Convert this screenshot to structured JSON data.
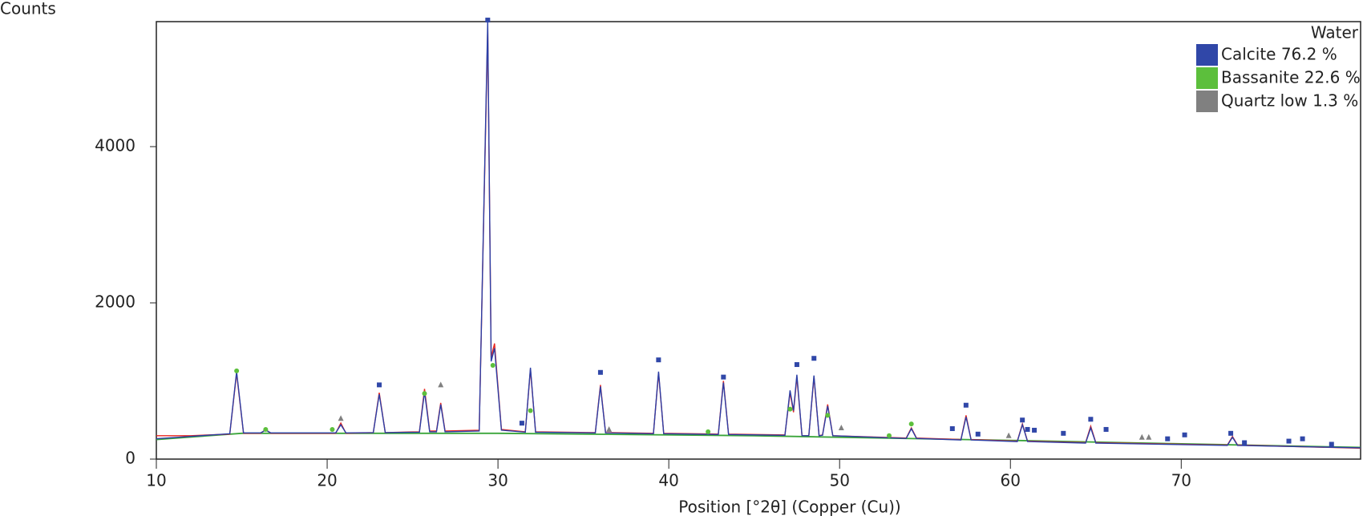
{
  "chart_data": {
    "type": "line",
    "y_label": "Counts",
    "x_label": "Position [°2θ] (Copper (Cu))",
    "legend_title": "Water",
    "xlim": [
      10,
      80.5
    ],
    "ylim": [
      0,
      5600
    ],
    "xticks": [
      10,
      20,
      30,
      40,
      50,
      60,
      70
    ],
    "yticks": [
      0,
      2000,
      4000
    ],
    "grid": false,
    "x": [
      10,
      12,
      14.3,
      14.7,
      15.1,
      16.1,
      16.4,
      16.7,
      20.5,
      20.8,
      21.1,
      22.7,
      23.05,
      23.4,
      25.4,
      25.7,
      26.0,
      26.4,
      26.65,
      26.9,
      28.9,
      29.4,
      29.6,
      29.8,
      30.2,
      31.6,
      31.9,
      32.2,
      35.7,
      36.0,
      36.3,
      39.1,
      39.4,
      39.7,
      42.9,
      43.2,
      43.5,
      46.8,
      47.1,
      47.3,
      47.5,
      47.8,
      48.2,
      48.5,
      48.8,
      49.0,
      49.3,
      49.6,
      53.9,
      54.2,
      54.5,
      57.1,
      57.4,
      57.7,
      60.4,
      60.7,
      61.0,
      64.4,
      64.7,
      65.0,
      72.7,
      73.0,
      73.3,
      80.5
    ],
    "series": [
      {
        "color": "#e8261f",
        "values": [
          300,
          300,
          320,
          1100,
          330,
          330,
          380,
          330,
          330,
          460,
          330,
          340,
          850,
          340,
          350,
          900,
          360,
          360,
          720,
          360,
          370,
          5500,
          1300,
          1480,
          380,
          350,
          1150,
          350,
          340,
          950,
          340,
          330,
          1100,
          330,
          320,
          1000,
          320,
          310,
          850,
          600,
          1050,
          300,
          300,
          1050,
          300,
          310,
          700,
          300,
          270,
          400,
          270,
          250,
          560,
          250,
          230,
          450,
          230,
          210,
          420,
          210,
          180,
          290,
          180,
          140
        ]
      },
      {
        "color": "#2b3fa6",
        "values": [
          260,
          290,
          325,
          1120,
          335,
          335,
          370,
          335,
          335,
          440,
          335,
          340,
          830,
          340,
          345,
          860,
          350,
          350,
          700,
          350,
          360,
          5600,
          1250,
          1420,
          370,
          345,
          1170,
          345,
          335,
          930,
          335,
          325,
          1120,
          325,
          315,
          980,
          315,
          305,
          880,
          620,
          1080,
          300,
          300,
          1070,
          300,
          305,
          680,
          300,
          265,
          390,
          265,
          245,
          540,
          245,
          225,
          440,
          225,
          205,
          400,
          205,
          175,
          280,
          175,
          145
        ]
      }
    ],
    "background": {
      "color": "#3aa53a",
      "x": [
        10,
        15,
        30,
        45,
        60,
        80.5
      ],
      "values": [
        250,
        330,
        330,
        300,
        240,
        150
      ]
    },
    "phases": [
      {
        "name": "Calcite 76.2 %",
        "color": "#3047a8",
        "marker": "square",
        "x": [
          23.05,
          29.4,
          31.4,
          36.0,
          39.4,
          43.2,
          47.5,
          48.5,
          56.6,
          57.4,
          58.1,
          60.7,
          61.0,
          61.4,
          63.1,
          64.7,
          65.6,
          69.2,
          70.2,
          72.9,
          73.7,
          76.3,
          77.1,
          78.8
        ],
        "values": [
          950,
          5620,
          460,
          1110,
          1270,
          1050,
          1210,
          1290,
          390,
          690,
          320,
          500,
          380,
          370,
          330,
          510,
          380,
          260,
          310,
          330,
          210,
          230,
          260,
          190
        ]
      },
      {
        "name": "Bassanite 22.6 %",
        "color": "#5cbf3c",
        "marker": "circle",
        "x": [
          14.7,
          16.4,
          20.3,
          25.7,
          29.7,
          31.9,
          42.3,
          47.1,
          49.3,
          52.9,
          54.2
        ],
        "values": [
          1130,
          380,
          380,
          840,
          1200,
          620,
          350,
          640,
          560,
          300,
          450
        ]
      },
      {
        "name": "Quartz low 1.3 %",
        "color": "#808080",
        "marker": "triangle",
        "x": [
          20.8,
          26.65,
          36.5,
          50.1,
          59.9,
          67.7,
          68.1
        ],
        "values": [
          520,
          950,
          380,
          400,
          300,
          280,
          280
        ]
      }
    ]
  }
}
